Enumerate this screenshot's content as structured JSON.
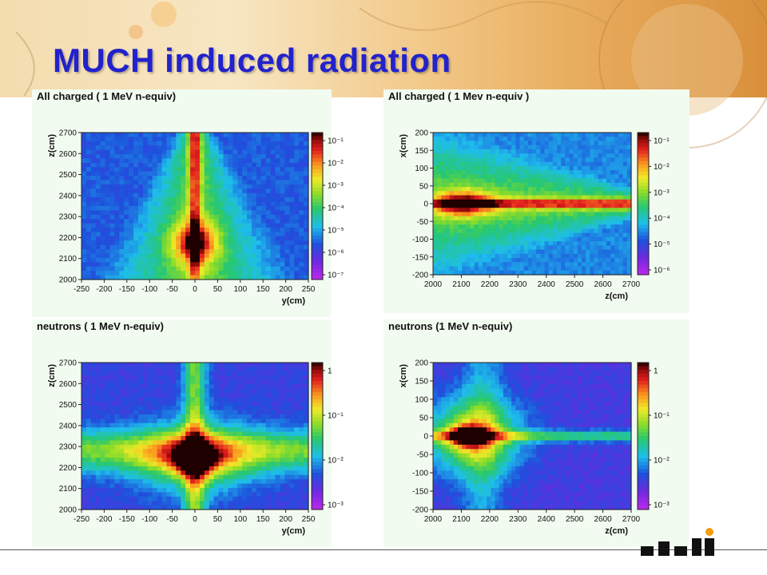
{
  "slide": {
    "title": "MUCH induced radiation"
  },
  "colors": {
    "title": "#2222cc",
    "banner": "#f2c989"
  },
  "chart_data": [
    {
      "type": "heatmap",
      "title": "All charged ( 1 MeV n-equiv)",
      "xlabel": "y(cm)",
      "ylabel": "z(cm)",
      "xticks": [
        "-250",
        "-200",
        "-150",
        "-100",
        "-50",
        "0",
        "50",
        "100",
        "150",
        "200",
        "250"
      ],
      "yticks": [
        "2000",
        "2100",
        "2200",
        "2300",
        "2400",
        "2500",
        "2600",
        "2700"
      ],
      "xlim": [
        -250,
        250
      ],
      "ylim": [
        2000,
        2700
      ],
      "colorbar": {
        "labels": [
          "10⁻¹",
          "10⁻²",
          "10⁻³",
          "10⁻⁴",
          "10⁻⁵",
          "10⁻⁶",
          "10⁻⁷"
        ],
        "scale": "log"
      }
    },
    {
      "type": "heatmap",
      "title": "All charged ( 1 Mev n-equiv )",
      "xlabel": "z(cm)",
      "ylabel": "x(cm)",
      "xticks": [
        "2000",
        "2100",
        "2200",
        "2300",
        "2400",
        "2500",
        "2600",
        "2700"
      ],
      "yticks": [
        "-200",
        "-150",
        "-100",
        "-50",
        "0",
        "50",
        "100",
        "150",
        "200"
      ],
      "xlim": [
        2000,
        2700
      ],
      "ylim": [
        -200,
        200
      ],
      "colorbar": {
        "labels": [
          "10⁻¹",
          "10⁻²",
          "10⁻³",
          "10⁻⁴",
          "10⁻⁵",
          "10⁻⁶"
        ],
        "scale": "log"
      }
    },
    {
      "type": "heatmap",
      "title": "neutrons ( 1 MeV n-equiv)",
      "xlabel": "y(cm)",
      "ylabel": "z(cm)",
      "xticks": [
        "-250",
        "-200",
        "-150",
        "-100",
        "-50",
        "0",
        "50",
        "100",
        "150",
        "200",
        "250"
      ],
      "yticks": [
        "2000",
        "2100",
        "2200",
        "2300",
        "2400",
        "2500",
        "2600",
        "2700"
      ],
      "xlim": [
        -250,
        250
      ],
      "ylim": [
        2000,
        2700
      ],
      "colorbar": {
        "labels": [
          "1",
          "10⁻¹",
          "10⁻²",
          "10⁻³"
        ],
        "scale": "log"
      }
    },
    {
      "type": "heatmap",
      "title": "neutrons (1 MeV n-equiv)",
      "xlabel": "z(cm)",
      "ylabel": "x(cm)",
      "xticks": [
        "2000",
        "2100",
        "2200",
        "2300",
        "2400",
        "2500",
        "2600",
        "2700"
      ],
      "yticks": [
        "-200",
        "-150",
        "-100",
        "-50",
        "0",
        "50",
        "100",
        "150",
        "200"
      ],
      "xlim": [
        2000,
        2700
      ],
      "ylim": [
        -200,
        200
      ],
      "colorbar": {
        "labels": [
          "1",
          "10⁻¹",
          "10⁻²",
          "10⁻³"
        ],
        "scale": "log"
      }
    }
  ]
}
